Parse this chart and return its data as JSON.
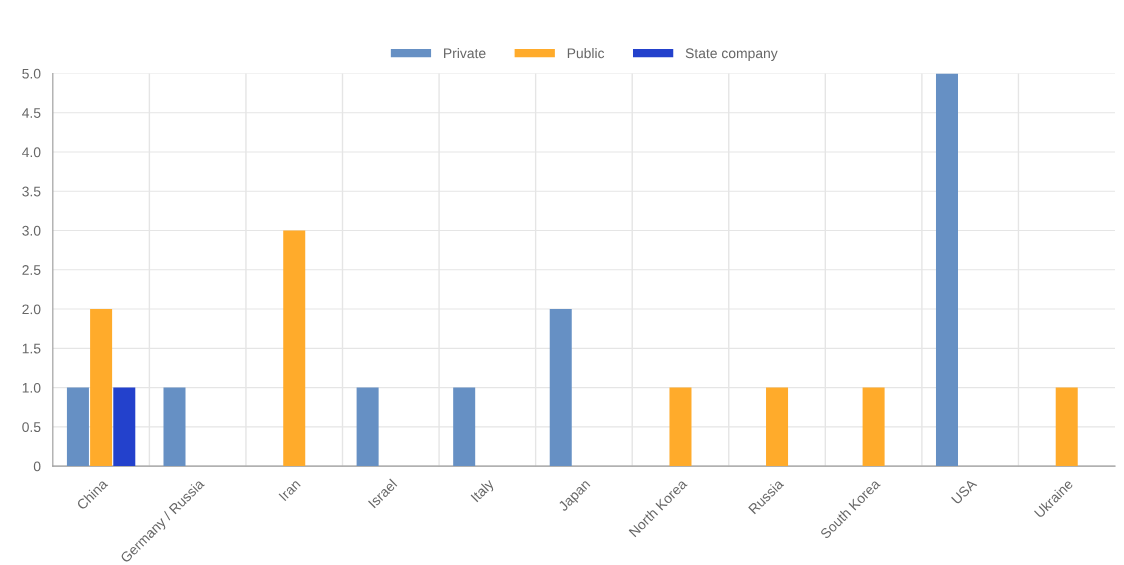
{
  "chart_data": {
    "type": "bar",
    "categories": [
      "China",
      "Germany / Russia",
      "Iran",
      "Israel",
      "Italy",
      "Japan",
      "North Korea",
      "Russia",
      "South Korea",
      "USA",
      "Ukraine"
    ],
    "series": [
      {
        "name": "Private",
        "color": "#6690c4",
        "values": [
          1,
          1,
          null,
          1,
          1,
          2,
          null,
          null,
          null,
          5,
          null
        ]
      },
      {
        "name": "Public",
        "color": "#ffab2b",
        "values": [
          2,
          null,
          3,
          null,
          null,
          null,
          1,
          1,
          1,
          null,
          1
        ]
      },
      {
        "name": "State company",
        "color": "#2341cc",
        "values": [
          1,
          null,
          null,
          null,
          null,
          null,
          null,
          null,
          null,
          null,
          null
        ]
      }
    ],
    "ylim": [
      0,
      5
    ],
    "yticks": [
      0,
      0.5,
      {
        "value": 1,
        "label": "1.0"
      },
      1.5,
      {
        "value": 2,
        "label": "2.0"
      },
      2.5,
      {
        "value": 3,
        "label": "3.0"
      },
      3.5,
      {
        "value": 4,
        "label": "4.0"
      },
      4.5,
      {
        "value": 5,
        "label": "5.0"
      }
    ],
    "grid": true,
    "legend": "top"
  }
}
